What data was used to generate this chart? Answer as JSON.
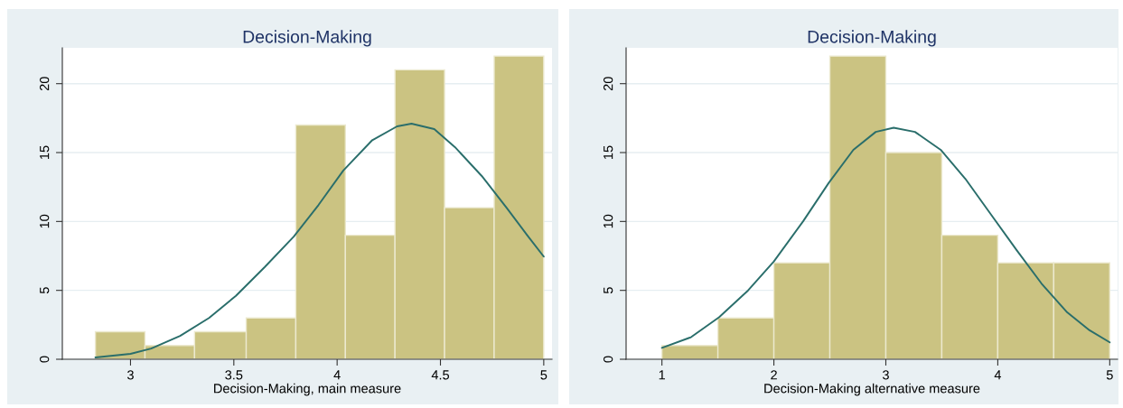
{
  "chart_data": [
    {
      "type": "histogram",
      "title": "Decision-Making",
      "xlabel": "Decision-Making, main measure",
      "color": "#cbc382",
      "bins": [
        2.83,
        3.07,
        3.31,
        3.56,
        3.8,
        4.04,
        4.28,
        4.52,
        4.76,
        5.0
      ],
      "values": [
        2,
        1,
        2,
        3,
        17,
        9,
        21,
        11,
        22
      ],
      "series": [
        {
          "type": "line",
          "color": "#2a6e6b",
          "x": [
            2.83,
            3.0,
            3.1,
            3.24,
            3.38,
            3.51,
            3.65,
            3.79,
            3.91,
            4.03,
            4.17,
            4.29,
            4.36,
            4.47,
            4.57,
            4.7,
            4.82,
            4.92,
            5.0
          ],
          "values": [
            0.13,
            0.39,
            0.78,
            1.7,
            3.0,
            4.6,
            6.7,
            8.9,
            11.2,
            13.7,
            15.9,
            16.9,
            17.1,
            16.7,
            15.4,
            13.3,
            11.0,
            9.0,
            7.45
          ]
        }
      ],
      "xlim": [
        2.67,
        5.04
      ],
      "ylim": [
        0,
        22.6
      ],
      "xticks": [
        3,
        3.5,
        4,
        4.5,
        5
      ],
      "yticks": [
        0,
        5,
        10,
        15,
        20
      ],
      "grid": "y"
    },
    {
      "type": "histogram",
      "title": "Decision-Making",
      "xlabel": "Decision-Making alternative measure",
      "color": "#cbc382",
      "bins": [
        1,
        1.5,
        2,
        2.5,
        3,
        3.5,
        4,
        4.5,
        5
      ],
      "values": [
        1,
        3,
        7,
        22,
        15,
        9,
        7,
        7
      ],
      "series": [
        {
          "type": "line",
          "color": "#2a6e6b",
          "x": [
            1.0,
            1.26,
            1.51,
            1.77,
            2.0,
            2.26,
            2.49,
            2.71,
            2.91,
            3.07,
            3.26,
            3.49,
            3.71,
            3.94,
            4.17,
            4.39,
            4.62,
            4.82,
            5.0
          ],
          "values": [
            0.83,
            1.6,
            3.05,
            5.0,
            7.1,
            10.0,
            12.8,
            15.2,
            16.5,
            16.8,
            16.5,
            15.2,
            13.1,
            10.5,
            7.9,
            5.5,
            3.4,
            2.1,
            1.23
          ]
        }
      ],
      "xlim": [
        0.68,
        5.07
      ],
      "ylim": [
        0,
        22.6
      ],
      "xticks": [
        1,
        2,
        3,
        4,
        5
      ],
      "yticks": [
        0,
        5,
        10,
        15,
        20
      ],
      "grid": "y"
    }
  ]
}
